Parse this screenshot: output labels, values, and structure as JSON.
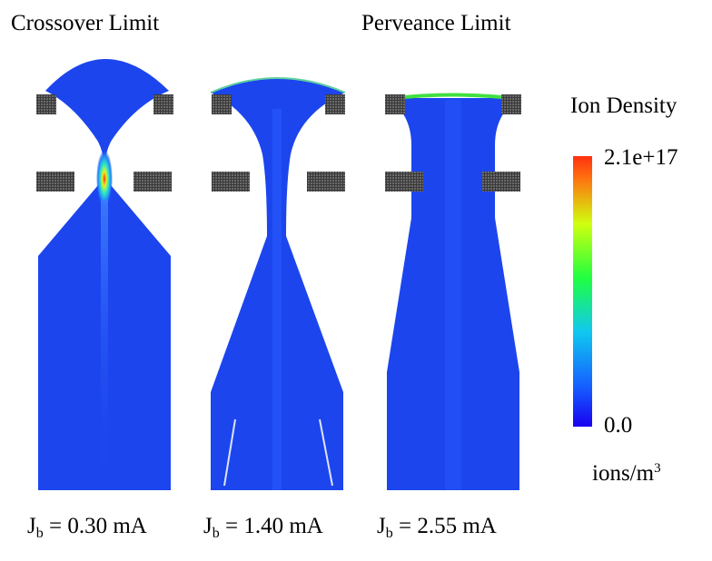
{
  "titles": {
    "left": "Crossover Limit",
    "right": "Perveance Limit"
  },
  "legend": {
    "title": "Ion Density",
    "max_label": "2.1e+17",
    "min_label": "0.0",
    "unit_base": "ions/m",
    "unit_exp": "3",
    "colors": [
      "#1a00f0",
      "#1560ff",
      "#10c8f0",
      "#20ff40",
      "#d0ff10",
      "#ff7010",
      "#ff3010"
    ]
  },
  "panels": [
    {
      "sym": "J",
      "sub": "b",
      "value": " = 0.30 mA"
    },
    {
      "sym": "J",
      "sub": "b",
      "value": " = 1.40 mA"
    },
    {
      "sym": "J",
      "sub": "b",
      "value": " = 2.55 mA"
    }
  ],
  "colors": {
    "beam": "#1c45ee",
    "electrode": "#4a4a4a",
    "hot_core": "#ff3010",
    "edge_green": "#40e040"
  }
}
